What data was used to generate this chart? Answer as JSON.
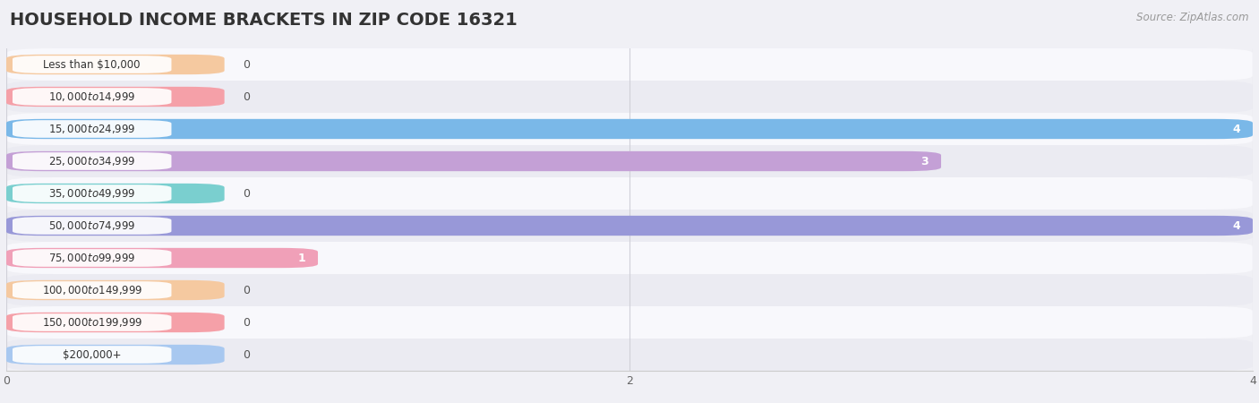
{
  "title": "HOUSEHOLD INCOME BRACKETS IN ZIP CODE 16321",
  "source": "Source: ZipAtlas.com",
  "categories": [
    "Less than $10,000",
    "$10,000 to $14,999",
    "$15,000 to $24,999",
    "$25,000 to $34,999",
    "$35,000 to $49,999",
    "$50,000 to $74,999",
    "$75,000 to $99,999",
    "$100,000 to $149,999",
    "$150,000 to $199,999",
    "$200,000+"
  ],
  "values": [
    0,
    0,
    4,
    3,
    0,
    4,
    1,
    0,
    0,
    0
  ],
  "bar_colors": [
    "#f5c9a0",
    "#f5a0a8",
    "#7ab8e8",
    "#c4a0d6",
    "#7acfcf",
    "#9898d8",
    "#f0a0b8",
    "#f5c9a0",
    "#f5a0a8",
    "#a8c8f0"
  ],
  "xlim": [
    0,
    4
  ],
  "xticks": [
    0,
    2,
    4
  ],
  "background_color": "#f0f0f5",
  "row_bg_light": "#f8f8fc",
  "row_bg_dark": "#ebebf2",
  "title_fontsize": 14,
  "bar_height": 0.62,
  "figsize": [
    14.06,
    4.5
  ]
}
